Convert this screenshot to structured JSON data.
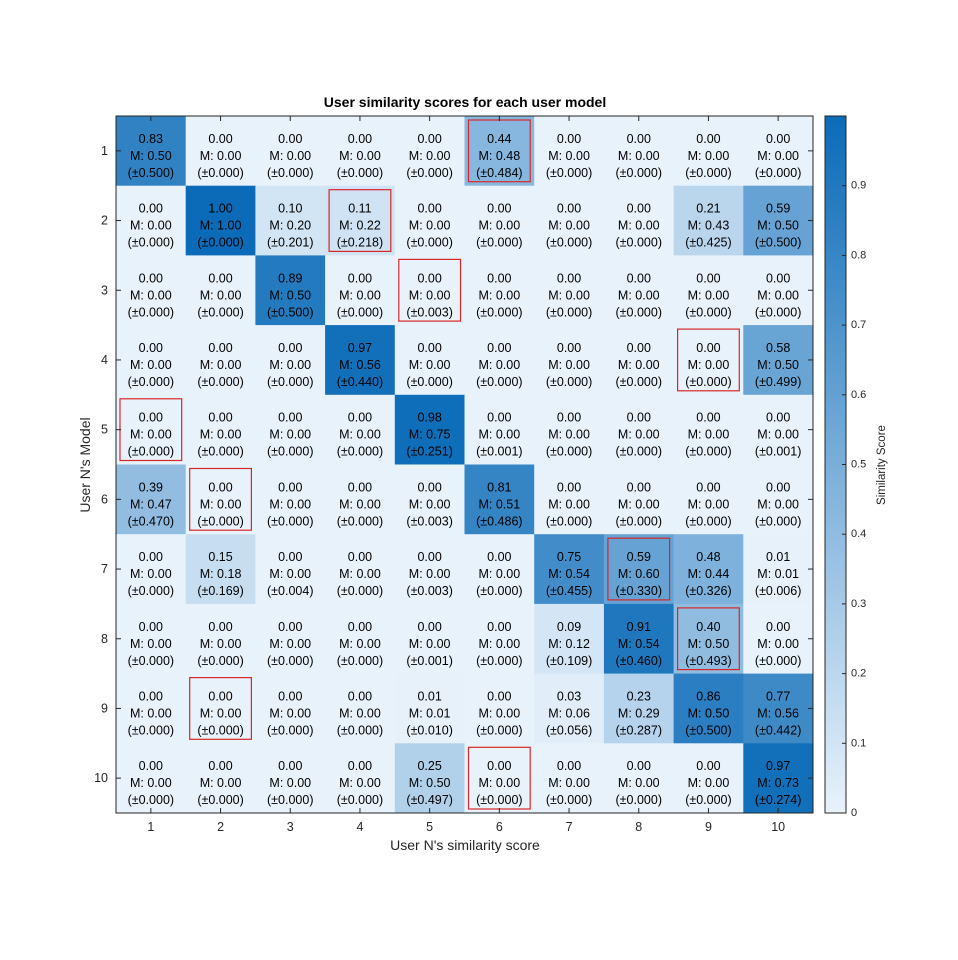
{
  "chart_data": {
    "type": "heatmap",
    "title": "User similarity scores for each user model",
    "xlabel": "User N's similarity score",
    "ylabel": "User N's Model",
    "x_categories": [
      "1",
      "2",
      "3",
      "4",
      "5",
      "6",
      "7",
      "8",
      "9",
      "10"
    ],
    "y_categories": [
      "1",
      "2",
      "3",
      "4",
      "5",
      "6",
      "7",
      "8",
      "9",
      "10"
    ],
    "colorbar_label": "Similarity Score",
    "colorbar_ticks": [
      "0",
      "0.1",
      "0.2",
      "0.3",
      "0.4",
      "0.5",
      "0.6",
      "0.7",
      "0.8",
      "0.9"
    ],
    "color_range": [
      0,
      1
    ],
    "colormap": {
      "low": "#e8f2fb",
      "high": "#0b6bb8"
    },
    "highlight_color": "#d62728",
    "values": [
      [
        0.83,
        0.0,
        0.0,
        0.0,
        0.0,
        0.44,
        0.0,
        0.0,
        0.0,
        0.0
      ],
      [
        0.0,
        1.0,
        0.1,
        0.11,
        0.0,
        0.0,
        0.0,
        0.0,
        0.21,
        0.59
      ],
      [
        0.0,
        0.0,
        0.89,
        0.0,
        0.0,
        0.0,
        0.0,
        0.0,
        0.0,
        0.0
      ],
      [
        0.0,
        0.0,
        0.0,
        0.97,
        0.0,
        0.0,
        0.0,
        0.0,
        0.0,
        0.58
      ],
      [
        0.0,
        0.0,
        0.0,
        0.0,
        0.98,
        0.0,
        0.0,
        0.0,
        0.0,
        0.0
      ],
      [
        0.39,
        0.0,
        0.0,
        0.0,
        0.0,
        0.81,
        0.0,
        0.0,
        0.0,
        0.0
      ],
      [
        0.0,
        0.15,
        0.0,
        0.0,
        0.0,
        0.0,
        0.75,
        0.59,
        0.48,
        0.01
      ],
      [
        0.0,
        0.0,
        0.0,
        0.0,
        0.0,
        0.0,
        0.09,
        0.91,
        0.4,
        0.0
      ],
      [
        0.0,
        0.0,
        0.0,
        0.0,
        0.01,
        0.0,
        0.03,
        0.23,
        0.86,
        0.77
      ],
      [
        0.0,
        0.0,
        0.0,
        0.0,
        0.25,
        0.0,
        0.0,
        0.0,
        0.0,
        0.97
      ]
    ],
    "labels_value": [
      [
        "0.83",
        "0.00",
        "0.00",
        "0.00",
        "0.00",
        "0.44",
        "0.00",
        "0.00",
        "0.00",
        "0.00"
      ],
      [
        "0.00",
        "1.00",
        "0.10",
        "0.11",
        "0.00",
        "0.00",
        "0.00",
        "0.00",
        "0.21",
        "0.59"
      ],
      [
        "0.00",
        "0.00",
        "0.89",
        "0.00",
        "0.00",
        "0.00",
        "0.00",
        "0.00",
        "0.00",
        "0.00"
      ],
      [
        "0.00",
        "0.00",
        "0.00",
        "0.97",
        "0.00",
        "0.00",
        "0.00",
        "0.00",
        "0.00",
        "0.58"
      ],
      [
        "0.00",
        "0.00",
        "0.00",
        "0.00",
        "0.98",
        "0.00",
        "0.00",
        "0.00",
        "0.00",
        "0.00"
      ],
      [
        "0.39",
        "0.00",
        "0.00",
        "0.00",
        "0.00",
        "0.81",
        "0.00",
        "0.00",
        "0.00",
        "0.00"
      ],
      [
        "0.00",
        "0.15",
        "0.00",
        "0.00",
        "0.00",
        "0.00",
        "0.75",
        "0.59",
        "0.48",
        "0.01"
      ],
      [
        "0.00",
        "0.00",
        "0.00",
        "0.00",
        "0.00",
        "0.00",
        "0.09",
        "0.91",
        "0.40",
        "0.00"
      ],
      [
        "0.00",
        "0.00",
        "0.00",
        "0.00",
        "0.01",
        "0.00",
        "0.03",
        "0.23",
        "0.86",
        "0.77"
      ],
      [
        "0.00",
        "0.00",
        "0.00",
        "0.00",
        "0.25",
        "0.00",
        "0.00",
        "0.00",
        "0.00",
        "0.97"
      ]
    ],
    "labels_mean": [
      [
        "M: 0.50",
        "M: 0.00",
        "M: 0.00",
        "M: 0.00",
        "M: 0.00",
        "M: 0.48",
        "M: 0.00",
        "M: 0.00",
        "M: 0.00",
        "M: 0.00"
      ],
      [
        "M: 0.00",
        "M: 1.00",
        "M: 0.20",
        "M: 0.22",
        "M: 0.00",
        "M: 0.00",
        "M: 0.00",
        "M: 0.00",
        "M: 0.43",
        "M: 0.50"
      ],
      [
        "M: 0.00",
        "M: 0.00",
        "M: 0.50",
        "M: 0.00",
        "M: 0.00",
        "M: 0.00",
        "M: 0.00",
        "M: 0.00",
        "M: 0.00",
        "M: 0.00"
      ],
      [
        "M: 0.00",
        "M: 0.00",
        "M: 0.00",
        "M: 0.56",
        "M: 0.00",
        "M: 0.00",
        "M: 0.00",
        "M: 0.00",
        "M: 0.00",
        "M: 0.50"
      ],
      [
        "M: 0.00",
        "M: 0.00",
        "M: 0.00",
        "M: 0.00",
        "M: 0.75",
        "M: 0.00",
        "M: 0.00",
        "M: 0.00",
        "M: 0.00",
        "M: 0.00"
      ],
      [
        "M: 0.47",
        "M: 0.00",
        "M: 0.00",
        "M: 0.00",
        "M: 0.00",
        "M: 0.51",
        "M: 0.00",
        "M: 0.00",
        "M: 0.00",
        "M: 0.00"
      ],
      [
        "M: 0.00",
        "M: 0.18",
        "M: 0.00",
        "M: 0.00",
        "M: 0.00",
        "M: 0.00",
        "M: 0.54",
        "M: 0.60",
        "M: 0.44",
        "M: 0.01"
      ],
      [
        "M: 0.00",
        "M: 0.00",
        "M: 0.00",
        "M: 0.00",
        "M: 0.00",
        "M: 0.00",
        "M: 0.12",
        "M: 0.54",
        "M: 0.50",
        "M: 0.00"
      ],
      [
        "M: 0.00",
        "M: 0.00",
        "M: 0.00",
        "M: 0.00",
        "M: 0.01",
        "M: 0.00",
        "M: 0.06",
        "M: 0.29",
        "M: 0.50",
        "M: 0.56"
      ],
      [
        "M: 0.00",
        "M: 0.00",
        "M: 0.00",
        "M: 0.00",
        "M: 0.50",
        "M: 0.00",
        "M: 0.00",
        "M: 0.00",
        "M: 0.00",
        "M: 0.73"
      ]
    ],
    "labels_std": [
      [
        "(±0.500)",
        "(±0.000)",
        "(±0.000)",
        "(±0.000)",
        "(±0.000)",
        "(±0.484)",
        "(±0.000)",
        "(±0.000)",
        "(±0.000)",
        "(±0.000)"
      ],
      [
        "(±0.000)",
        "(±0.000)",
        "(±0.201)",
        "(±0.218)",
        "(±0.000)",
        "(±0.000)",
        "(±0.000)",
        "(±0.000)",
        "(±0.425)",
        "(±0.500)"
      ],
      [
        "(±0.000)",
        "(±0.000)",
        "(±0.500)",
        "(±0.000)",
        "(±0.003)",
        "(±0.000)",
        "(±0.000)",
        "(±0.000)",
        "(±0.000)",
        "(±0.000)"
      ],
      [
        "(±0.000)",
        "(±0.000)",
        "(±0.000)",
        "(±0.440)",
        "(±0.000)",
        "(±0.000)",
        "(±0.000)",
        "(±0.000)",
        "(±0.000)",
        "(±0.499)"
      ],
      [
        "(±0.000)",
        "(±0.000)",
        "(±0.000)",
        "(±0.000)",
        "(±0.251)",
        "(±0.001)",
        "(±0.000)",
        "(±0.000)",
        "(±0.000)",
        "(±0.001)"
      ],
      [
        "(±0.470)",
        "(±0.000)",
        "(±0.000)",
        "(±0.000)",
        "(±0.003)",
        "(±0.486)",
        "(±0.000)",
        "(±0.000)",
        "(±0.000)",
        "(±0.000)"
      ],
      [
        "(±0.000)",
        "(±0.169)",
        "(±0.004)",
        "(±0.000)",
        "(±0.003)",
        "(±0.000)",
        "(±0.455)",
        "(±0.330)",
        "(±0.326)",
        "(±0.006)"
      ],
      [
        "(±0.000)",
        "(±0.000)",
        "(±0.000)",
        "(±0.000)",
        "(±0.001)",
        "(±0.000)",
        "(±0.109)",
        "(±0.460)",
        "(±0.493)",
        "(±0.000)"
      ],
      [
        "(±0.000)",
        "(±0.000)",
        "(±0.000)",
        "(±0.000)",
        "(±0.010)",
        "(±0.000)",
        "(±0.056)",
        "(±0.287)",
        "(±0.500)",
        "(±0.442)"
      ],
      [
        "(±0.000)",
        "(±0.000)",
        "(±0.000)",
        "(±0.000)",
        "(±0.497)",
        "(±0.000)",
        "(±0.000)",
        "(±0.000)",
        "(±0.000)",
        "(±0.274)"
      ]
    ],
    "highlighted_cells": [
      [
        1,
        6
      ],
      [
        2,
        4
      ],
      [
        3,
        5
      ],
      [
        4,
        9
      ],
      [
        5,
        1
      ],
      [
        6,
        2
      ],
      [
        7,
        8
      ],
      [
        8,
        9
      ],
      [
        9,
        2
      ],
      [
        10,
        6
      ]
    ]
  }
}
